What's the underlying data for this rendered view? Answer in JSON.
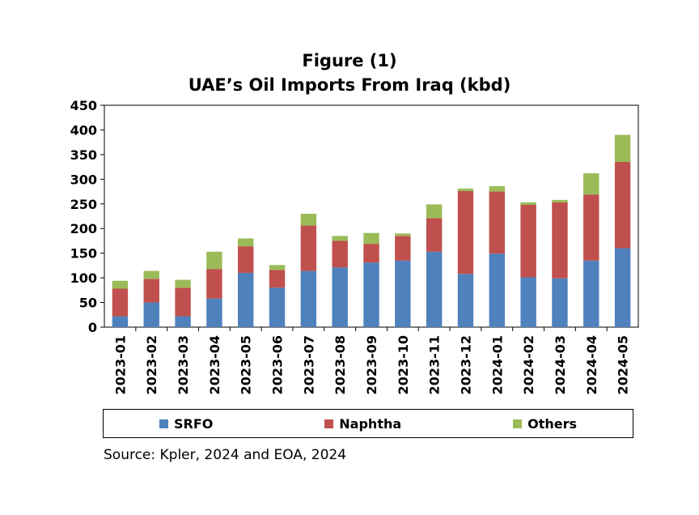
{
  "chart_data": {
    "type": "bar",
    "stacked": true,
    "title": "Figure (1)",
    "subtitle": "UAE’s Oil Imports From Iraq (kbd)",
    "xlabel": "",
    "ylabel": "",
    "ylim": [
      0,
      450
    ],
    "yticks": [
      "0",
      "50",
      "100",
      "150",
      "200",
      "250",
      "300",
      "350",
      "400",
      "450"
    ],
    "grid": false,
    "legend_position": "bottom",
    "categories": [
      "2023-01",
      "2023-02",
      "2023-03",
      "2023-04",
      "2023-05",
      "2023-06",
      "2023-07",
      "2023-08",
      "2023-09",
      "2023-10",
      "2023-11",
      "2023-12",
      "2024-01",
      "2024-02",
      "2024-03",
      "2024-04",
      "2024-05"
    ],
    "series": [
      {
        "name": "SRFO",
        "color": "#4f81bd",
        "values": [
          22,
          50,
          22,
          58,
          110,
          80,
          114,
          121,
          131,
          135,
          153,
          108,
          149,
          101,
          99,
          135,
          160
        ]
      },
      {
        "name": "Naphtha",
        "color": "#c0504d",
        "values": [
          56,
          48,
          58,
          60,
          54,
          36,
          92,
          54,
          38,
          50,
          68,
          168,
          126,
          147,
          154,
          134,
          175
        ]
      },
      {
        "name": "Others",
        "color": "#9bbb59",
        "values": [
          16,
          16,
          16,
          35,
          16,
          10,
          24,
          10,
          22,
          5,
          28,
          5,
          11,
          5,
          5,
          43,
          55
        ]
      }
    ]
  },
  "source": "Source: Kpler, 2024 and EOA, 2024"
}
